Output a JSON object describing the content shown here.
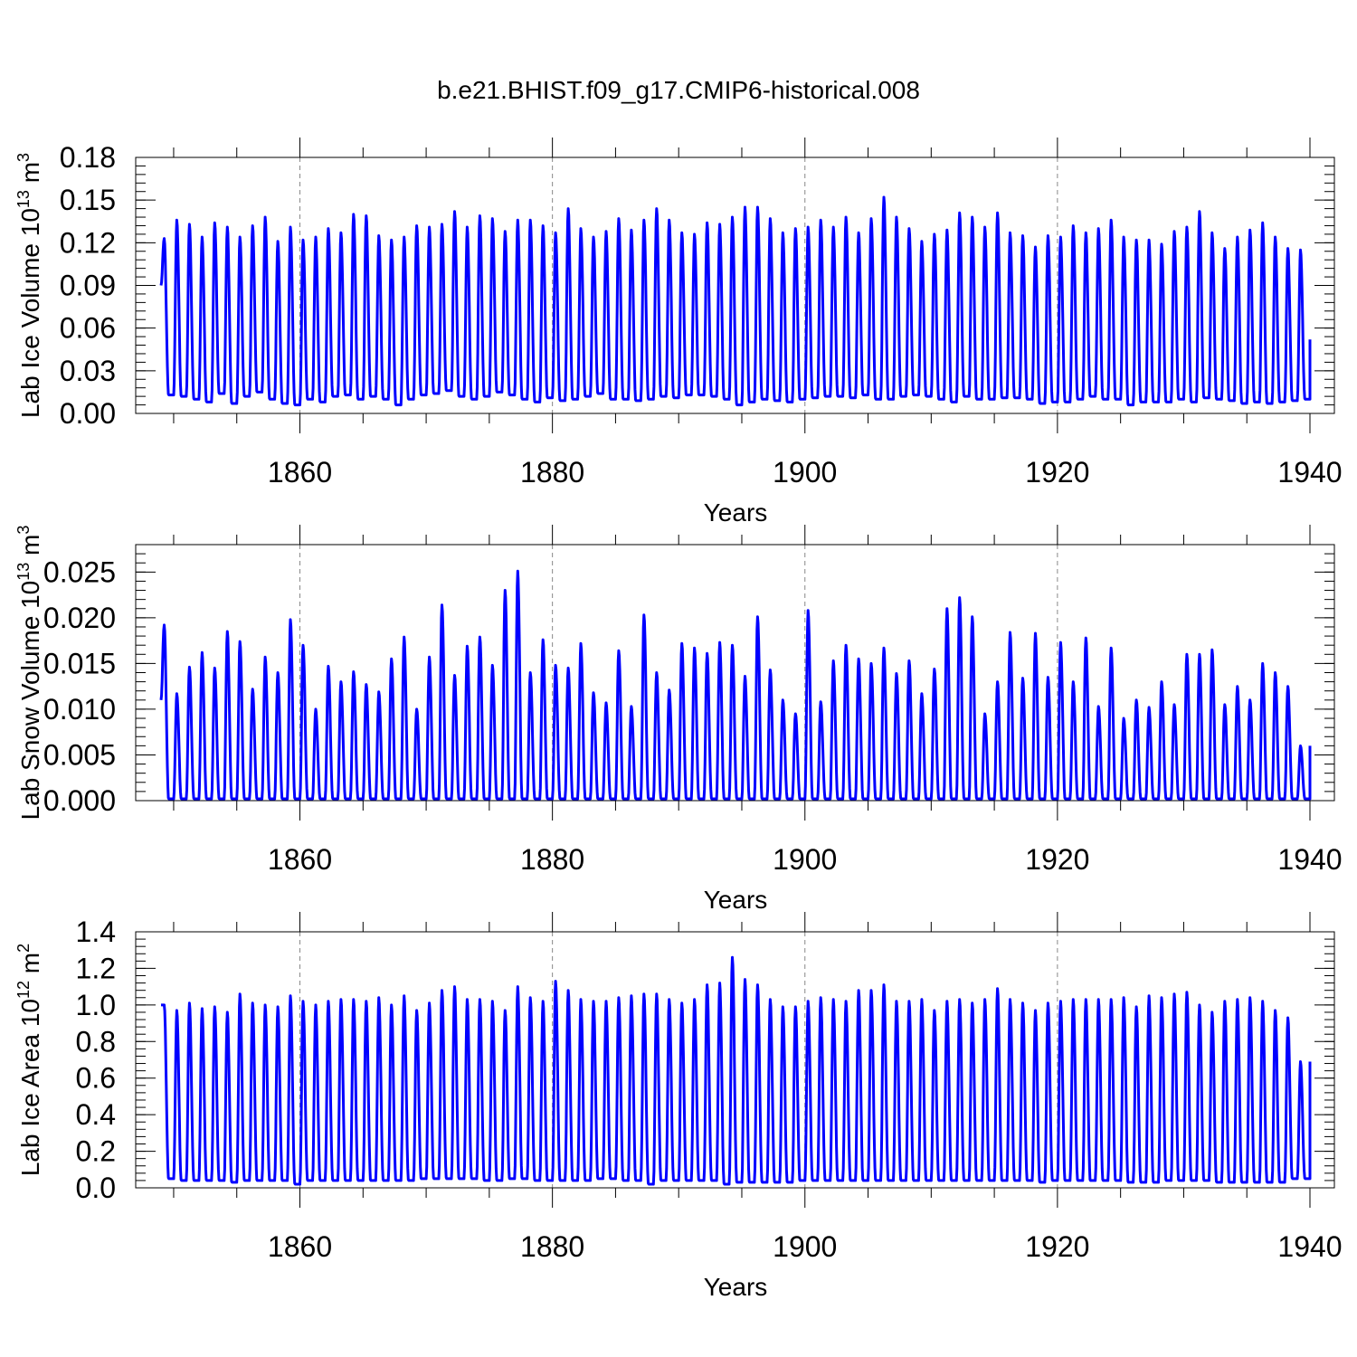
{
  "title": "b.e21.BHIST.f09_g17.CMIP6-historical.008",
  "colors": {
    "series": "#0000ff",
    "axis": "#000000",
    "grid": "#888888"
  },
  "chart_data": [
    {
      "type": "line",
      "name": "ice-volume",
      "ylabel": "Lab Ice Volume 10^13 m^3",
      "ylabel_base": "Lab Ice Volume 10",
      "ylabel_exp": "13",
      "ylabel_unit": " m",
      "ylabel_unit_exp": "3",
      "xlabel": "Years",
      "xlim": [
        1849,
        1940
      ],
      "ylim": [
        0,
        0.18
      ],
      "yticks": [
        "0.00",
        "0.03",
        "0.06",
        "0.09",
        "0.12",
        "0.15",
        "0.18"
      ],
      "xticks": [
        "1860",
        "1880",
        "1900",
        "1920",
        "1940"
      ],
      "start_value": 0.09,
      "end_value": 0.052,
      "annual_max": [
        0.123,
        0.136,
        0.133,
        0.124,
        0.134,
        0.131,
        0.124,
        0.132,
        0.138,
        0.121,
        0.131,
        0.122,
        0.124,
        0.13,
        0.127,
        0.14,
        0.139,
        0.125,
        0.122,
        0.124,
        0.132,
        0.131,
        0.133,
        0.142,
        0.131,
        0.139,
        0.137,
        0.128,
        0.136,
        0.136,
        0.132,
        0.127,
        0.144,
        0.13,
        0.124,
        0.128,
        0.137,
        0.129,
        0.136,
        0.144,
        0.136,
        0.127,
        0.126,
        0.134,
        0.133,
        0.138,
        0.145,
        0.145,
        0.137,
        0.127,
        0.13,
        0.131,
        0.136,
        0.131,
        0.138,
        0.127,
        0.137,
        0.152,
        0.138,
        0.13,
        0.121,
        0.126,
        0.129,
        0.141,
        0.138,
        0.131,
        0.141,
        0.127,
        0.125,
        0.117,
        0.125,
        0.124,
        0.132,
        0.127,
        0.13,
        0.136,
        0.124,
        0.122,
        0.122,
        0.119,
        0.128,
        0.131,
        0.142,
        0.127,
        0.116,
        0.124,
        0.129,
        0.134,
        0.124,
        0.116,
        0.115
      ],
      "annual_min": [
        0.013,
        0.012,
        0.01,
        0.008,
        0.014,
        0.007,
        0.012,
        0.015,
        0.01,
        0.007,
        0.006,
        0.01,
        0.008,
        0.012,
        0.013,
        0.01,
        0.012,
        0.01,
        0.006,
        0.01,
        0.013,
        0.014,
        0.016,
        0.012,
        0.01,
        0.012,
        0.015,
        0.013,
        0.01,
        0.008,
        0.011,
        0.009,
        0.01,
        0.012,
        0.014,
        0.01,
        0.01,
        0.009,
        0.01,
        0.012,
        0.011,
        0.013,
        0.013,
        0.012,
        0.01,
        0.006,
        0.008,
        0.01,
        0.009,
        0.008,
        0.01,
        0.011,
        0.012,
        0.012,
        0.011,
        0.013,
        0.01,
        0.01,
        0.012,
        0.013,
        0.012,
        0.01,
        0.008,
        0.012,
        0.01,
        0.01,
        0.011,
        0.011,
        0.01,
        0.007,
        0.008,
        0.008,
        0.01,
        0.012,
        0.01,
        0.01,
        0.006,
        0.008,
        0.008,
        0.008,
        0.01,
        0.008,
        0.011,
        0.01,
        0.009,
        0.007,
        0.008,
        0.007,
        0.008,
        0.009,
        0.01
      ]
    },
    {
      "type": "line",
      "name": "snow-volume",
      "ylabel": "Lab Snow Volume 10^13 m^3",
      "ylabel_base": "Lab Snow Volume 10",
      "ylabel_exp": "13",
      "ylabel_unit": " m",
      "ylabel_unit_exp": "3",
      "xlabel": "Years",
      "xlim": [
        1849,
        1940
      ],
      "ylim": [
        0,
        0.028
      ],
      "yticks": [
        "0.000",
        "0.005",
        "0.010",
        "0.015",
        "0.020",
        "0.025"
      ],
      "ytick_values": [
        0,
        0.005,
        0.01,
        0.015,
        0.02,
        0.025
      ],
      "xticks": [
        "1860",
        "1880",
        "1900",
        "1920",
        "1940"
      ],
      "start_value": 0.011,
      "end_value": 0.006,
      "annual_max": [
        0.0192,
        0.0117,
        0.0146,
        0.0162,
        0.0145,
        0.0185,
        0.0174,
        0.0122,
        0.0157,
        0.014,
        0.0198,
        0.017,
        0.01,
        0.0147,
        0.013,
        0.0141,
        0.0127,
        0.0119,
        0.0155,
        0.0179,
        0.01,
        0.0157,
        0.0214,
        0.0137,
        0.0169,
        0.0179,
        0.0148,
        0.023,
        0.0251,
        0.014,
        0.0176,
        0.0148,
        0.0145,
        0.0172,
        0.0118,
        0.0107,
        0.0164,
        0.0103,
        0.0203,
        0.014,
        0.0121,
        0.0172,
        0.0167,
        0.0161,
        0.0173,
        0.017,
        0.0136,
        0.0201,
        0.0143,
        0.011,
        0.0095,
        0.0208,
        0.0108,
        0.0153,
        0.017,
        0.0155,
        0.015,
        0.0167,
        0.0139,
        0.0153,
        0.0117,
        0.0144,
        0.021,
        0.0222,
        0.0201,
        0.0095,
        0.013,
        0.0184,
        0.0134,
        0.0183,
        0.0135,
        0.0173,
        0.013,
        0.0178,
        0.0103,
        0.0167,
        0.009,
        0.011,
        0.0102,
        0.013,
        0.0105,
        0.016,
        0.016,
        0.0165,
        0.0105,
        0.0125,
        0.011,
        0.015,
        0.014,
        0.0125,
        0.006
      ],
      "annual_min": [
        0.0002,
        0.0002,
        0.0002,
        0.0002,
        0.0002,
        0.0002,
        0.0002,
        0.0002,
        0.0002,
        0.0002,
        0.0002,
        0.0002,
        0.0002,
        0.0002,
        0.0002,
        0.0002,
        0.0002,
        0.0002,
        0.0002,
        0.0002,
        0.0002,
        0.0002,
        0.0002,
        0.0002,
        0.0002,
        0.0002,
        0.0002,
        0.0002,
        0.0002,
        0.0002,
        0.0002,
        0.0002,
        0.0002,
        0.0002,
        0.0002,
        0.0002,
        0.0002,
        0.0002,
        0.0002,
        0.0002,
        0.0002,
        0.0002,
        0.0002,
        0.0002,
        0.0002,
        0.0002,
        0.0002,
        0.0002,
        0.0002,
        0.0002,
        0.0002,
        0.0002,
        0.0002,
        0.0002,
        0.0002,
        0.0002,
        0.0002,
        0.0002,
        0.0002,
        0.0002,
        0.0002,
        0.0002,
        0.0002,
        0.0002,
        0.0002,
        0.0002,
        0.0002,
        0.0002,
        0.0002,
        0.0002,
        0.0002,
        0.0002,
        0.0002,
        0.0002,
        0.0002,
        0.0002,
        0.0002,
        0.0002,
        0.0002,
        0.0002,
        0.0002,
        0.0002,
        0.0002,
        0.0002,
        0.0002,
        0.0002,
        0.0002,
        0.0002,
        0.0002,
        0.0002,
        0.0002
      ]
    },
    {
      "type": "line",
      "name": "ice-area",
      "ylabel": "Lab Ice Area 10^12 m^2",
      "ylabel_base": "Lab Ice Area 10",
      "ylabel_exp": "12",
      "ylabel_unit": " m",
      "ylabel_unit_exp": "2",
      "xlabel": "Years",
      "xlim": [
        1849,
        1940
      ],
      "ylim": [
        0,
        1.4
      ],
      "yticks": [
        "0.0",
        "0.2",
        "0.4",
        "0.6",
        "0.8",
        "1.0",
        "1.2",
        "1.4"
      ],
      "xticks": [
        "1860",
        "1880",
        "1900",
        "1920",
        "1940"
      ],
      "start_value": 1.0,
      "end_value": 0.69,
      "annual_max": [
        1.0,
        0.97,
        1.01,
        0.98,
        0.99,
        0.96,
        1.06,
        1.01,
        1.0,
        0.99,
        1.05,
        1.02,
        1.0,
        1.02,
        1.03,
        1.03,
        1.02,
        1.04,
        1.0,
        1.05,
        0.97,
        1.01,
        1.08,
        1.1,
        1.03,
        1.03,
        1.02,
        0.97,
        1.1,
        1.04,
        1.02,
        1.13,
        1.08,
        1.03,
        1.02,
        1.02,
        1.04,
        1.05,
        1.06,
        1.06,
        1.03,
        1.01,
        1.03,
        1.11,
        1.12,
        1.26,
        1.14,
        1.11,
        1.03,
        0.99,
        0.99,
        1.02,
        1.04,
        1.03,
        1.02,
        1.08,
        1.08,
        1.11,
        1.02,
        1.02,
        1.03,
        0.97,
        1.02,
        1.03,
        1.01,
        1.03,
        1.09,
        1.03,
        1.01,
        0.97,
        1.01,
        1.02,
        1.03,
        1.03,
        1.03,
        1.03,
        1.04,
        0.99,
        1.05,
        1.04,
        1.06,
        1.07,
        1.0,
        0.96,
        1.02,
        1.03,
        1.04,
        1.02,
        0.97,
        0.93,
        0.69
      ],
      "annual_min": [
        0.05,
        0.04,
        0.04,
        0.04,
        0.04,
        0.03,
        0.04,
        0.04,
        0.04,
        0.04,
        0.02,
        0.04,
        0.04,
        0.04,
        0.04,
        0.04,
        0.04,
        0.04,
        0.04,
        0.04,
        0.05,
        0.05,
        0.05,
        0.05,
        0.05,
        0.04,
        0.04,
        0.05,
        0.05,
        0.04,
        0.04,
        0.04,
        0.04,
        0.04,
        0.05,
        0.05,
        0.04,
        0.04,
        0.02,
        0.04,
        0.04,
        0.04,
        0.04,
        0.04,
        0.02,
        0.03,
        0.03,
        0.03,
        0.03,
        0.03,
        0.04,
        0.04,
        0.04,
        0.04,
        0.04,
        0.04,
        0.04,
        0.04,
        0.04,
        0.04,
        0.04,
        0.04,
        0.04,
        0.04,
        0.04,
        0.04,
        0.04,
        0.04,
        0.04,
        0.03,
        0.04,
        0.04,
        0.04,
        0.04,
        0.04,
        0.04,
        0.03,
        0.03,
        0.03,
        0.04,
        0.04,
        0.04,
        0.04,
        0.03,
        0.03,
        0.03,
        0.03,
        0.03,
        0.03,
        0.05,
        0.05
      ]
    }
  ]
}
